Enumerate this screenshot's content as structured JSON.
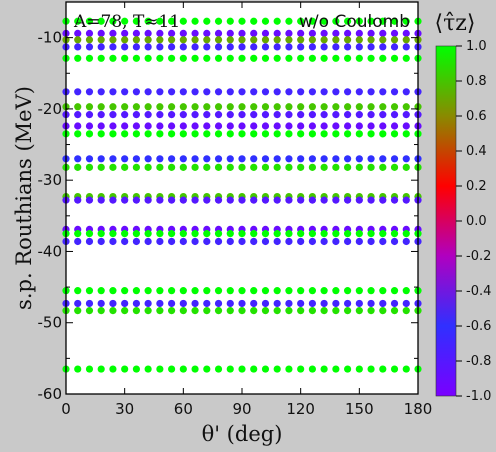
{
  "chart_data": {
    "type": "scatter",
    "annotation_left": "A=78, T≈11",
    "annotation_right": "w/o Coulomb",
    "xlabel": "θ' (deg)",
    "ylabel": "s.p. Routhians (MeV)",
    "xlim": [
      0,
      180
    ],
    "ylim": [
      -60,
      -5
    ],
    "xticks": [
      0,
      30,
      60,
      90,
      120,
      150,
      180
    ],
    "xtick_labels": [
      "0",
      "30",
      "60",
      "90",
      "120",
      "150",
      "180"
    ],
    "yticks": [
      -60,
      -50,
      -40,
      -30,
      -20,
      -10
    ],
    "ytick_labels": [
      "-60",
      "-50",
      "-40",
      "-30",
      "-20",
      "-10"
    ],
    "colorbar": {
      "title": "⟨τ̂z⟩",
      "range": [
        -1.0,
        1.0
      ],
      "ticks": [
        1.0,
        0.8,
        0.6,
        0.4,
        0.2,
        0.0,
        -0.2,
        -0.4,
        -0.6,
        -0.8,
        -1.0
      ],
      "tick_labels": [
        "1.0",
        "0.8",
        "0.6",
        "0.4",
        "0.2",
        "0.0",
        "-0.2",
        "-0.4",
        "-0.6",
        "-0.8",
        "-1.0"
      ],
      "colors": [
        "#7a00ff",
        "#3030ff",
        "#b000c0",
        "#ff0000",
        "#8a8a00",
        "#00ff00"
      ]
    },
    "theta_samples": [
      0,
      6,
      12,
      18,
      24,
      30,
      36,
      42,
      48,
      54,
      60,
      66,
      72,
      78,
      84,
      90,
      96,
      102,
      108,
      114,
      120,
      126,
      132,
      138,
      144,
      150,
      156,
      162,
      168,
      174,
      180
    ],
    "levels": [
      {
        "routhian": -7.7,
        "tau": 1.0
      },
      {
        "routhian": -9.4,
        "tau": -0.9
      },
      {
        "routhian": -10.3,
        "tau": 0.7
      },
      {
        "routhian": -11.3,
        "tau": -0.7
      },
      {
        "routhian": -12.9,
        "tau": 1.0
      },
      {
        "routhian": -17.6,
        "tau": -0.7
      },
      {
        "routhian": -19.7,
        "tau": 0.8
      },
      {
        "routhian": -20.8,
        "tau": -0.8
      },
      {
        "routhian": -22.4,
        "tau": -0.9
      },
      {
        "routhian": -23.5,
        "tau": 1.0
      },
      {
        "routhian": -27.0,
        "tau": -0.6
      },
      {
        "routhian": -28.2,
        "tau": 0.9
      },
      {
        "routhian": -32.3,
        "tau": 0.8
      },
      {
        "routhian": -32.8,
        "tau": -0.8
      },
      {
        "routhian": -36.9,
        "tau": -0.9
      },
      {
        "routhian": -37.5,
        "tau": 1.0
      },
      {
        "routhian": -38.6,
        "tau": -0.7
      },
      {
        "routhian": -45.5,
        "tau": 1.0
      },
      {
        "routhian": -47.3,
        "tau": -0.7
      },
      {
        "routhian": -48.3,
        "tau": 0.9
      },
      {
        "routhian": -56.5,
        "tau": 1.0
      }
    ]
  }
}
